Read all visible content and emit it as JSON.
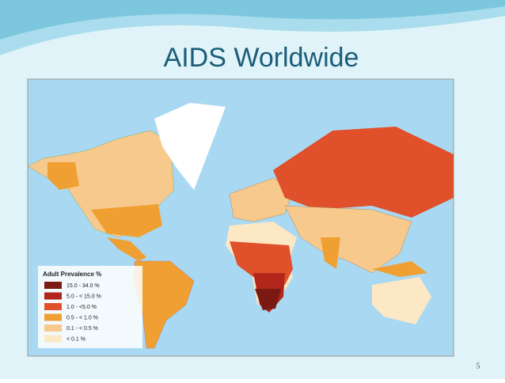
{
  "slide": {
    "title": "AIDS Worldwide",
    "page_number": 5
  },
  "map": {
    "legend": {
      "title": "Adult Prevalence %",
      "items": [
        {
          "label": "15.0 - 34.0 %",
          "color": "#7a1a12"
        },
        {
          "label": "5.0 - < 15.0 %",
          "color": "#b3261b"
        },
        {
          "label": "1.0 - <5.0 %",
          "color": "#e0502a"
        },
        {
          "label": "0.5 - < 1.0 %",
          "color": "#f0a032"
        },
        {
          "label": "0.1 - < 0.5 %",
          "color": "#f7c98c"
        },
        {
          "label": "< 0.1 %",
          "color": "#fce8c4"
        }
      ]
    }
  }
}
